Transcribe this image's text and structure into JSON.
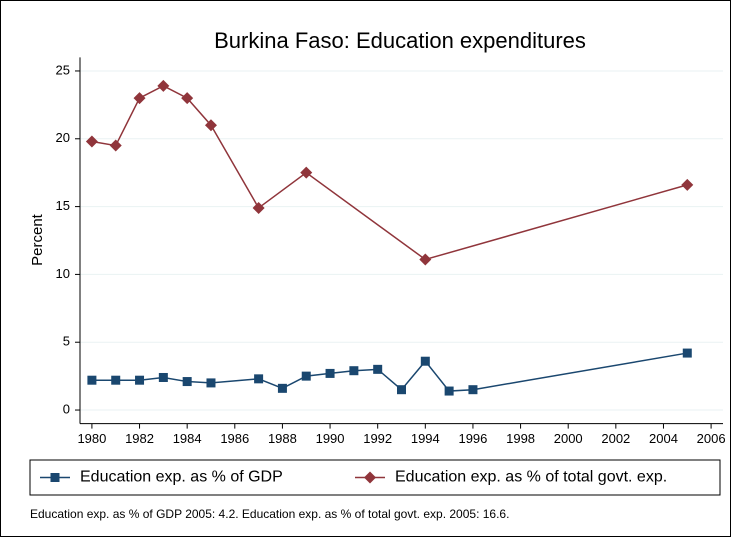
{
  "chart_data": {
    "type": "line",
    "title": "Burkina Faso: Education expenditures",
    "y_label": "Percent",
    "note": "Education exp. as % of GDP 2005: 4.2. Education exp. as % of total govt. exp. 2005: 16.6.",
    "xlim": [
      1979.5,
      2006.5
    ],
    "xticks": [
      1980,
      1982,
      1984,
      1986,
      1988,
      1990,
      1992,
      1994,
      1996,
      1998,
      2000,
      2002,
      2004,
      2006
    ],
    "ylim": [
      -1,
      26
    ],
    "yticks": [
      0,
      5,
      10,
      15,
      20,
      25
    ],
    "grid": true,
    "legend": "bottom",
    "series": [
      {
        "name": "Education exp. as % of GDP",
        "color": "#1a476f",
        "marker": "square",
        "x": [
          1980,
          1981,
          1982,
          1983,
          1984,
          1985,
          1987,
          1988,
          1989,
          1990,
          1991,
          1992,
          1993,
          1994,
          1995,
          1996,
          2005
        ],
        "values": [
          2.2,
          2.2,
          2.2,
          2.4,
          2.1,
          2.0,
          2.3,
          1.6,
          2.5,
          2.7,
          2.9,
          3.0,
          1.5,
          3.6,
          1.4,
          1.5,
          4.2
        ]
      },
      {
        "name": "Education exp. as % of total govt. exp.",
        "color": "#90353b",
        "marker": "diamond",
        "x": [
          1980,
          1981,
          1982,
          1983,
          1984,
          1985,
          1987,
          1989,
          1994,
          2005
        ],
        "values": [
          19.8,
          19.5,
          23.0,
          23.9,
          23.0,
          21.0,
          14.9,
          17.5,
          11.1,
          16.6
        ]
      }
    ]
  }
}
